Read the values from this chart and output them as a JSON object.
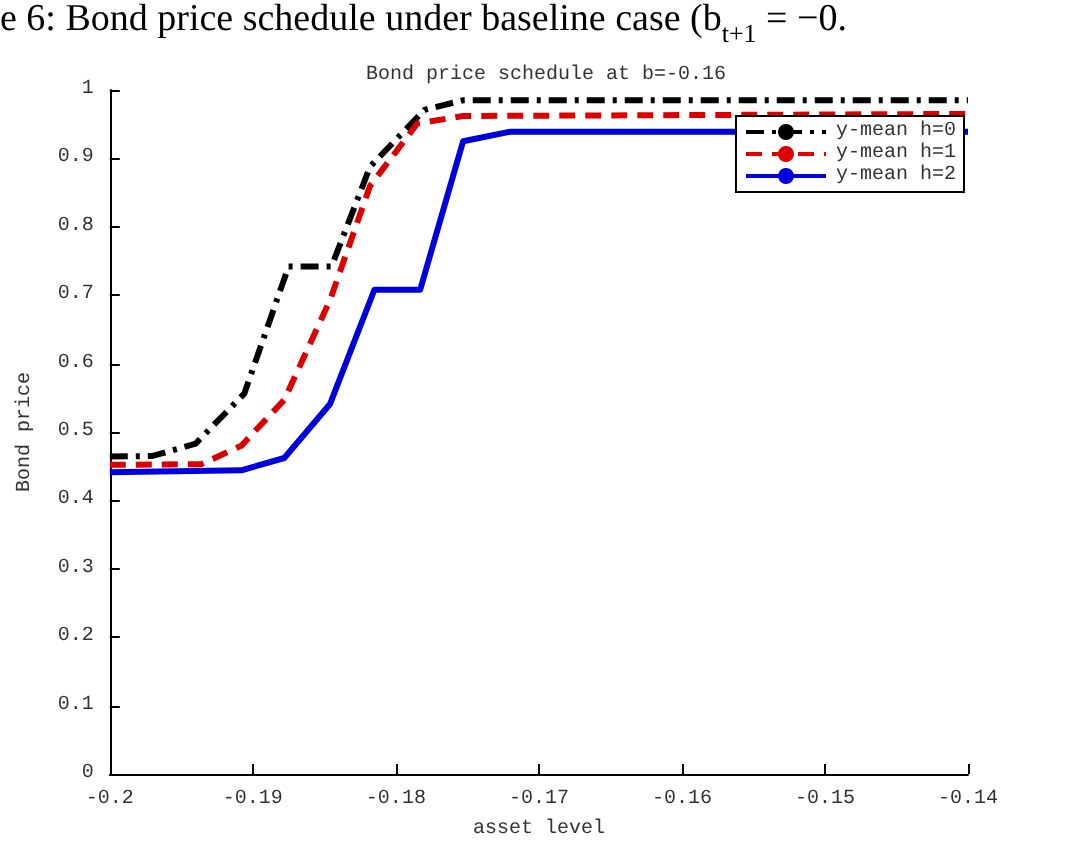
{
  "chart_data": {
    "type": "line",
    "title": "Bond price schedule at b=-0.16",
    "xlabel": "asset level",
    "ylabel": "Bond price",
    "annotations": [
      "e 6: Bond price schedule under baseline case (b$_{t+1}$ = −0."
    ],
    "xlim": [
      -0.2,
      -0.14
    ],
    "xticks": [
      -0.2,
      -0.19,
      -0.18,
      -0.17,
      -0.16,
      -0.15,
      -0.14
    ],
    "ylim": [
      0,
      1
    ],
    "yticks": [
      0,
      0.1,
      0.2,
      0.3,
      0.4,
      0.5,
      0.6,
      0.7,
      0.8,
      0.9,
      1
    ],
    "grid": false,
    "legend": "top right",
    "marker": "none",
    "series": [
      {
        "name": "y-mean h=0",
        "color": "#000000",
        "line_style": "dashdot",
        "x": [
          -0.2,
          -0.197,
          -0.194,
          -0.1906,
          -0.1875,
          -0.1845,
          -0.1818,
          -0.178,
          -0.1753,
          -0.14
        ],
        "values": [
          0.464,
          0.465,
          0.483,
          0.556,
          0.742,
          0.742,
          0.888,
          0.971,
          0.985,
          0.985
        ]
      },
      {
        "name": "y-mean h=1",
        "color": "#dd0000",
        "line_style": "dashed",
        "x": [
          -0.2,
          -0.1936,
          -0.1908,
          -0.1878,
          -0.1846,
          -0.1818,
          -0.1785,
          -0.1753,
          -0.14
        ],
        "values": [
          0.452,
          0.453,
          0.48,
          0.547,
          0.693,
          0.86,
          0.951,
          0.962,
          0.965
        ]
      },
      {
        "name": "y-mean h=2",
        "color": "#0000dd",
        "line_style": "solid",
        "x": [
          -0.2,
          -0.1908,
          -0.1878,
          -0.1846,
          -0.1815,
          -0.1783,
          -0.1753,
          -0.172,
          -0.14
        ],
        "values": [
          0.441,
          0.444,
          0.462,
          0.541,
          0.708,
          0.708,
          0.925,
          0.939,
          0.939
        ]
      }
    ]
  }
}
